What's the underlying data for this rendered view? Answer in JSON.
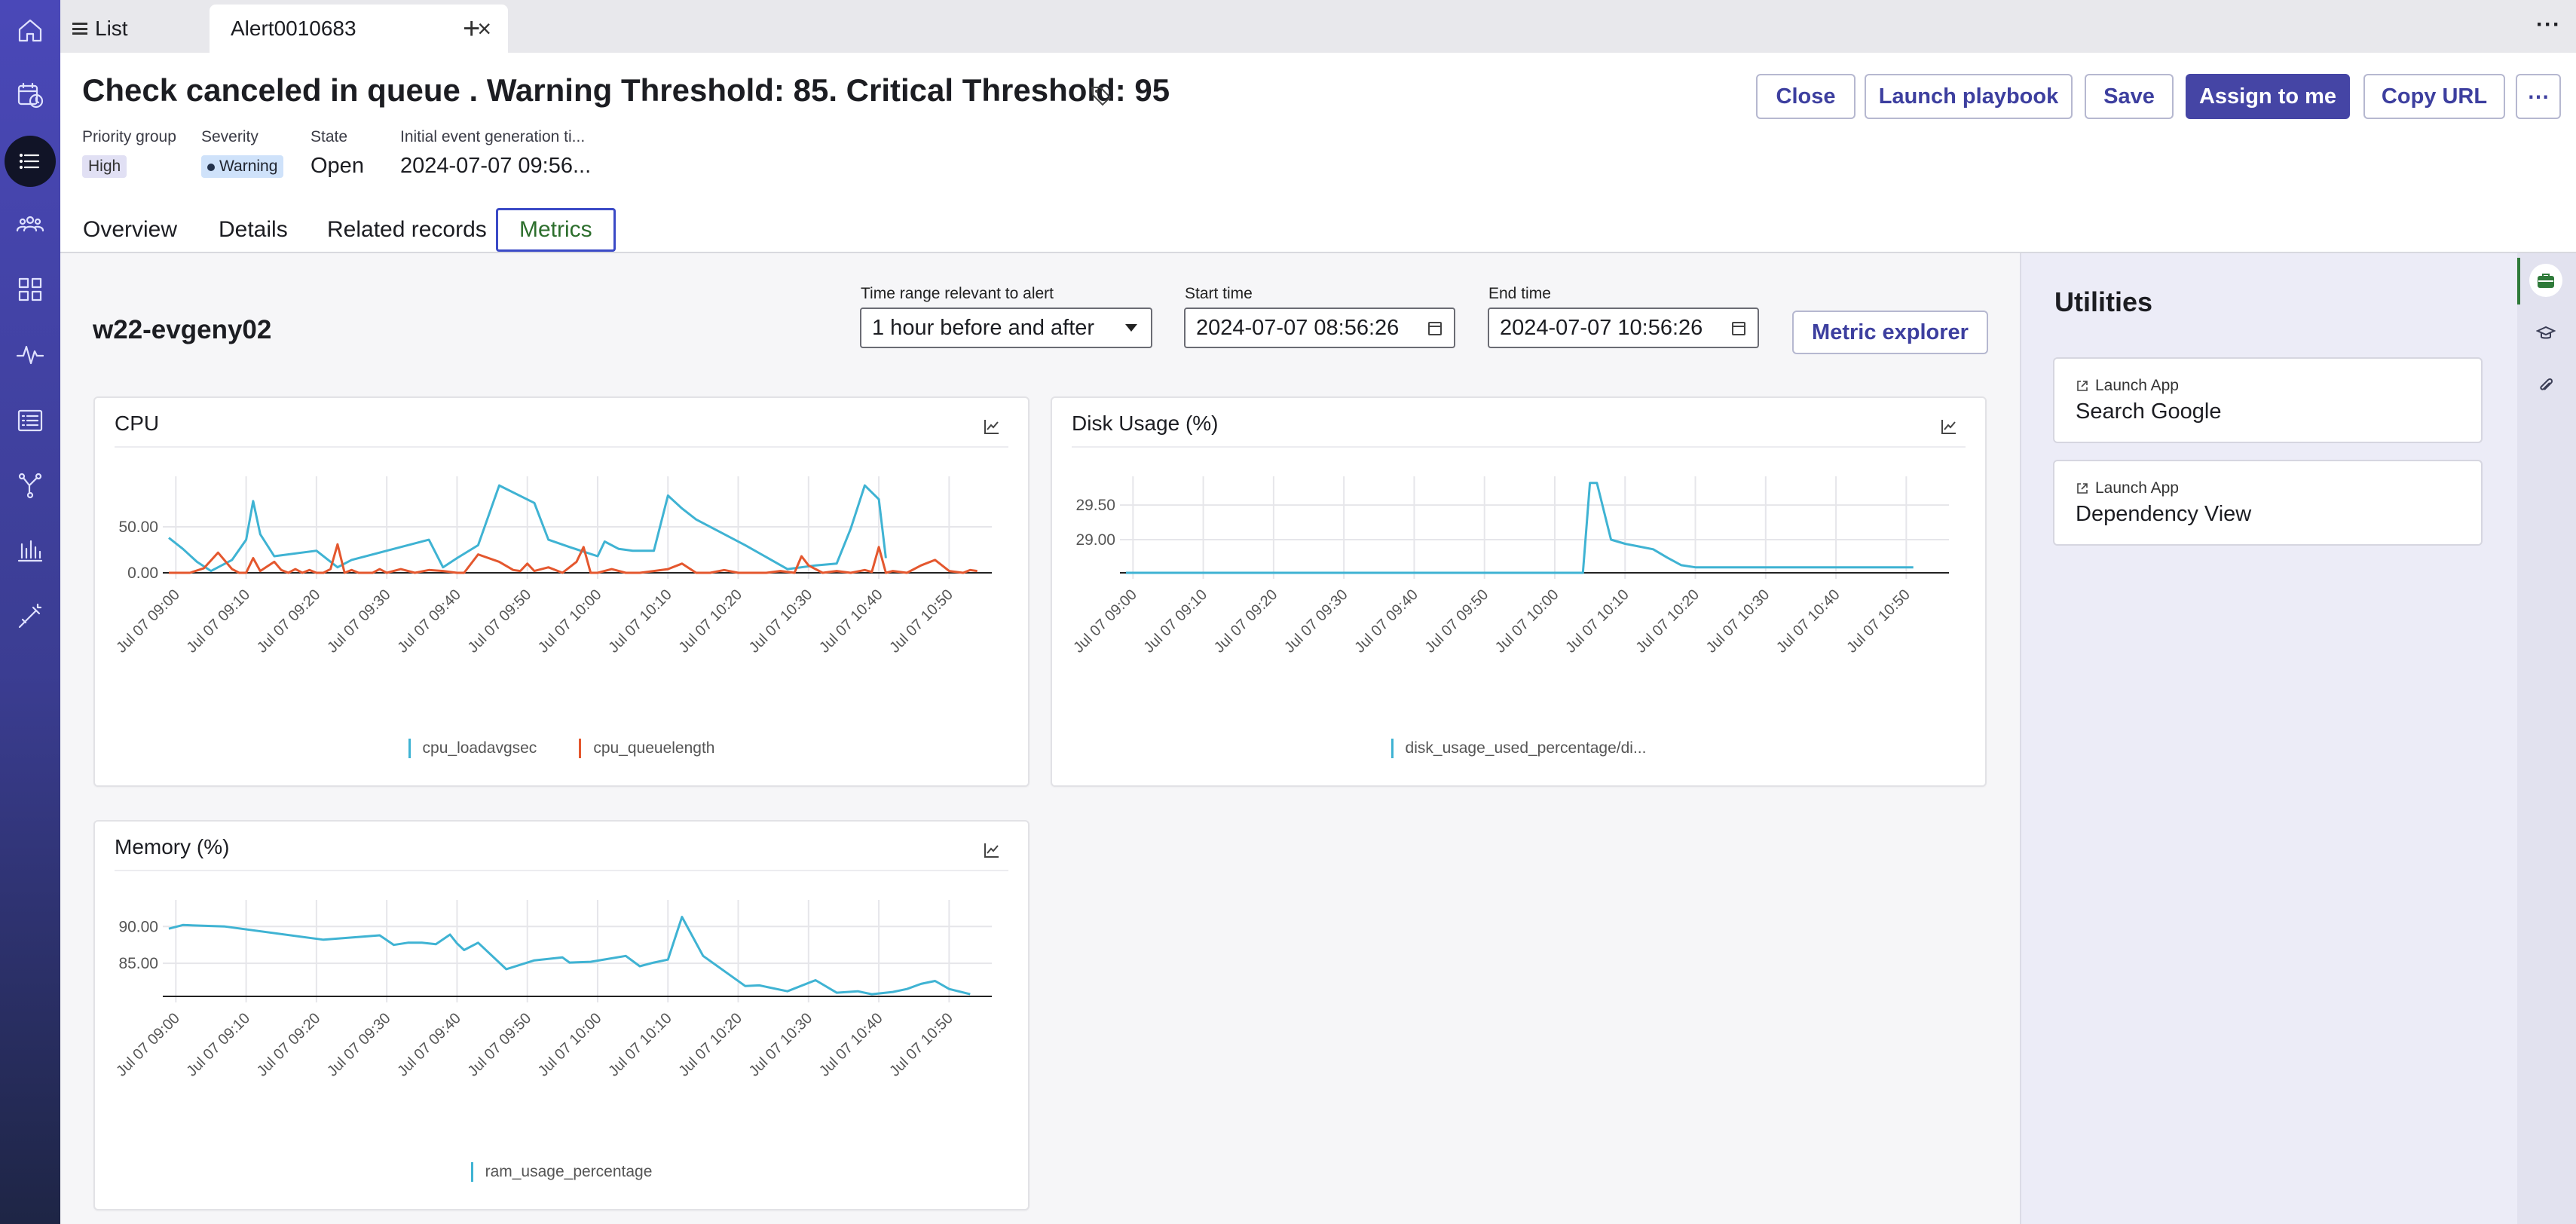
{
  "tabs": {
    "list_label": "List",
    "alert_label": "Alert0010683"
  },
  "header": {
    "title": "Check canceled in queue . Warning Threshold: 85. Critical Threshold: 95",
    "buttons": {
      "close": "Close",
      "launch_playbook": "Launch playbook",
      "save": "Save",
      "assign": "Assign to me",
      "copy_url": "Copy URL",
      "more": "⋯"
    },
    "meta": {
      "priority_label": "Priority group",
      "priority_value": "High",
      "severity_label": "Severity",
      "severity_value": "Warning",
      "state_label": "State",
      "state_value": "Open",
      "initial_label": "Initial event generation ti...",
      "initial_value": "2024-07-07 09:56..."
    }
  },
  "subtabs": [
    "Overview",
    "Details",
    "Related records",
    "Metrics"
  ],
  "metrics": {
    "host": "w22-evgeny02",
    "time_range_label": "Time range relevant to alert",
    "time_range_value": "1 hour before and after",
    "start_label": "Start time",
    "start_value": "2024-07-07 08:56:26",
    "end_label": "End time",
    "end_value": "2024-07-07 10:56:26",
    "explorer_button": "Metric explorer"
  },
  "utilities": {
    "title": "Utilities",
    "items": [
      {
        "type": "Launch App",
        "name": "Search Google"
      },
      {
        "type": "Launch App",
        "name": "Dependency View"
      }
    ]
  },
  "colors": {
    "accent": "#4545a5",
    "series_blue": "#3fb3d3",
    "series_red": "#e4572e"
  },
  "chart_data": [
    {
      "type": "line",
      "title": "CPU",
      "x_ticks": [
        "Jul 07 09:00",
        "Jul 07 09:10",
        "Jul 07 09:20",
        "Jul 07 09:30",
        "Jul 07 09:40",
        "Jul 07 09:50",
        "Jul 07 10:00",
        "Jul 07 10:10",
        "Jul 07 10:20",
        "Jul 07 10:30",
        "Jul 07 10:40",
        "Jul 07 10:50"
      ],
      "y_ticks": [
        "0.00",
        "50.00"
      ],
      "ylim": [
        0,
        100
      ],
      "xlim_minutes": [
        -1,
        115
      ],
      "series": [
        {
          "name": "cpu_loadavgsec",
          "color": "#3fb3d3",
          "x": [
            -1,
            1,
            3,
            5,
            8,
            10,
            11,
            12,
            14,
            20,
            23,
            25,
            30,
            36,
            38,
            40,
            43,
            46,
            51,
            53,
            56,
            60,
            61,
            63,
            65,
            68,
            70,
            72,
            74,
            81,
            87,
            91,
            94,
            96,
            98,
            100,
            101
          ],
          "y": [
            38,
            26,
            12,
            2,
            14,
            36,
            78,
            42,
            18,
            24,
            6,
            14,
            24,
            36,
            6,
            16,
            30,
            95,
            76,
            36,
            28,
            18,
            34,
            26,
            24,
            24,
            84,
            70,
            58,
            30,
            4,
            8,
            10,
            48,
            95,
            80,
            16
          ]
        },
        {
          "name": "cpu_queuelength",
          "color": "#e4572e",
          "x": [
            -1,
            2,
            4,
            6,
            8,
            9,
            10,
            11,
            12,
            14,
            15,
            16,
            17,
            18,
            19,
            20,
            21,
            22,
            23,
            24,
            25,
            26,
            27,
            28,
            29,
            30,
            32,
            34,
            36,
            38,
            40,
            41,
            43,
            46,
            48,
            49,
            50,
            51,
            53,
            55,
            57,
            58,
            59,
            60,
            62,
            64,
            66,
            68,
            70,
            72,
            74,
            76,
            78,
            80,
            82,
            84,
            86,
            88,
            89,
            90,
            92,
            94,
            96,
            98,
            99,
            100,
            101,
            102,
            104,
            106,
            108,
            110,
            112,
            113,
            114
          ],
          "y": [
            0,
            0,
            5,
            22,
            4,
            0,
            0,
            16,
            2,
            12,
            3,
            0,
            4,
            0,
            3,
            0,
            0,
            4,
            31,
            0,
            3,
            0,
            0,
            0,
            4,
            0,
            4,
            0,
            3,
            2,
            0,
            0,
            20,
            12,
            3,
            2,
            10,
            2,
            6,
            0,
            12,
            28,
            0,
            0,
            4,
            0,
            0,
            2,
            4,
            10,
            0,
            0,
            3,
            0,
            0,
            0,
            2,
            0,
            18,
            8,
            0,
            2,
            0,
            3,
            1,
            28,
            0,
            2,
            0,
            8,
            14,
            2,
            0,
            3,
            2
          ]
        }
      ]
    },
    {
      "type": "line",
      "title": "Disk Usage (%)",
      "x_ticks": [
        "Jul 07 09:00",
        "Jul 07 09:10",
        "Jul 07 09:20",
        "Jul 07 09:30",
        "Jul 07 09:40",
        "Jul 07 09:50",
        "Jul 07 10:00",
        "Jul 07 10:10",
        "Jul 07 10:20",
        "Jul 07 10:30",
        "Jul 07 10:40",
        "Jul 07 10:50"
      ],
      "y_ticks": [
        "29.00",
        "29.50"
      ],
      "ylim": [
        28.52,
        29.85
      ],
      "xlim_minutes": [
        -1,
        115
      ],
      "series": [
        {
          "name": "disk_usage_used_percentage/di...",
          "color": "#3fb3d3",
          "x": [
            -1,
            60,
            63,
            64,
            65,
            66,
            68,
            70,
            72,
            74,
            76,
            78,
            80,
            83,
            88,
            95,
            100,
            106,
            111
          ],
          "y": [
            28.52,
            28.52,
            28.52,
            28.52,
            29.82,
            29.82,
            29.0,
            28.94,
            28.9,
            28.86,
            28.74,
            28.63,
            28.6,
            28.6,
            28.6,
            28.6,
            28.6,
            28.6,
            28.6
          ]
        }
      ]
    },
    {
      "type": "line",
      "title": "Memory (%)",
      "x_ticks": [
        "Jul 07 09:00",
        "Jul 07 09:10",
        "Jul 07 09:20",
        "Jul 07 09:30",
        "Jul 07 09:40",
        "Jul 07 09:50",
        "Jul 07 10:00",
        "Jul 07 10:10",
        "Jul 07 10:20",
        "Jul 07 10:30",
        "Jul 07 10:40",
        "Jul 07 10:50"
      ],
      "y_ticks": [
        "85.00",
        "90.00"
      ],
      "ylim": [
        80.5,
        93
      ],
      "xlim_minutes": [
        -1,
        115
      ],
      "series": [
        {
          "name": "ram_usage_percentage",
          "color": "#3fb3d3",
          "x": [
            -1,
            1,
            7,
            21,
            29,
            31,
            33,
            35,
            37,
            39,
            40,
            41,
            43,
            47,
            51,
            55,
            56,
            59,
            64,
            66,
            68,
            70,
            72,
            75,
            81,
            83,
            87,
            91,
            94,
            97,
            99,
            102,
            104,
            106,
            108,
            110,
            113
          ],
          "y": [
            89.7,
            90.2,
            90.0,
            88.2,
            88.8,
            87.5,
            87.8,
            87.8,
            87.6,
            88.9,
            87.7,
            86.8,
            87.8,
            84.2,
            85.4,
            85.8,
            85.1,
            85.2,
            86.0,
            84.6,
            85.1,
            85.5,
            91.3,
            86.0,
            81.9,
            82.0,
            81.2,
            82.7,
            81.0,
            81.2,
            80.8,
            81.1,
            81.5,
            82.2,
            82.6,
            81.5,
            80.8
          ]
        }
      ]
    }
  ]
}
